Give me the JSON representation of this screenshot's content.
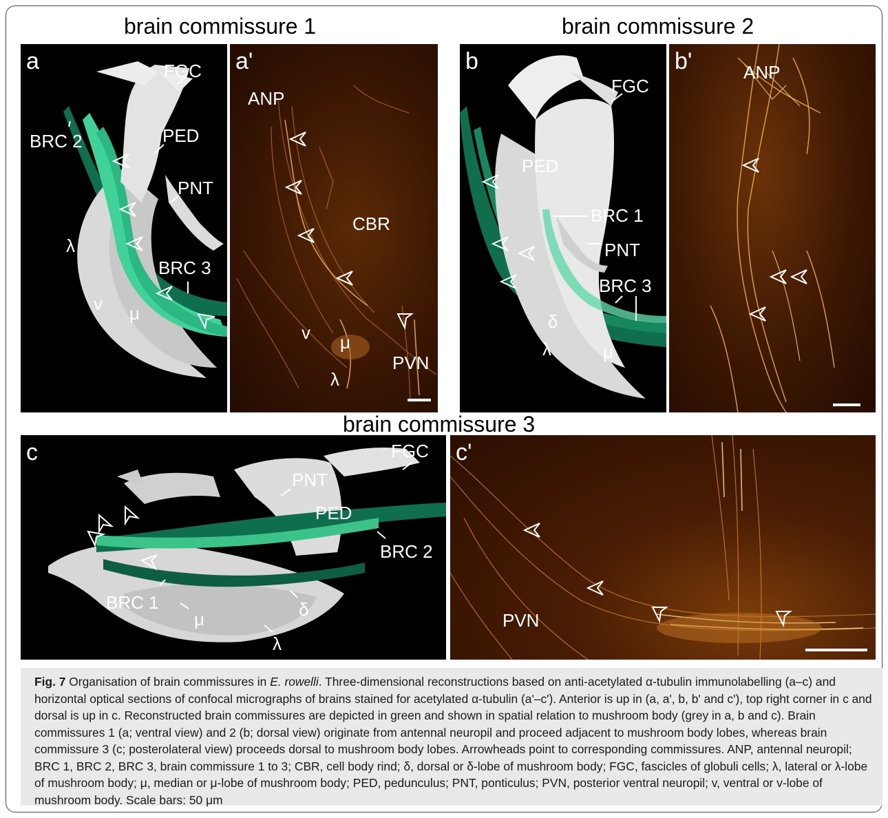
{
  "titles": {
    "bc1": "brain commissure 1",
    "bc2": "brain commissure 2",
    "bc3": "brain commissure 3"
  },
  "panels": {
    "a": {
      "letter": "a",
      "labels": {
        "fgc": "FGC",
        "brc2": "BRC 2",
        "ped": "PED",
        "pnt": "PNT",
        "lambda": "λ",
        "brc3": "BRC 3",
        "v": "v",
        "mu": "μ"
      }
    },
    "a2": {
      "letter": "a'",
      "labels": {
        "anp": "ANP",
        "cbr": "CBR",
        "v": "v",
        "mu": "μ",
        "pvn": "PVN",
        "lambda": "λ"
      }
    },
    "b": {
      "letter": "b",
      "labels": {
        "fgc": "FGC",
        "ped": "PED",
        "brc1": "BRC 1",
        "pnt": "PNT",
        "brc3": "BRC 3",
        "delta": "δ",
        "lambda": "λ",
        "mu": "μ"
      }
    },
    "b2": {
      "letter": "b'",
      "labels": {
        "anp": "ANP"
      }
    },
    "c": {
      "letter": "c",
      "labels": {
        "fgc": "FGC",
        "pnt": "PNT",
        "ped": "PED",
        "brc2": "BRC 2",
        "brc1": "BRC 1",
        "mu": "μ",
        "delta": "δ",
        "lambda": "λ"
      }
    },
    "c2": {
      "letter": "c'",
      "labels": {
        "pvn": "PVN"
      }
    }
  },
  "caption": {
    "fig": "Fig. 7",
    "title": "Organisation of brain commissures in",
    "species": "E. rowelli",
    "text": "Three-dimensional reconstructions based on anti-acetylated α-tubulin immunolabelling (a–c) and horizontal optical sections of confocal micrographs of brains stained for acetylated α-tubulin (a'–c'). Anterior is up in (a, a', b, b' and c'), top right corner in c and dorsal is up in c. Reconstructed brain commissures are depicted in green and shown in spatial relation to mushroom body (grey in a, b and c). Brain commissures 1 (a; ventral view) and 2 (b; dorsal view) originate from antennal neuropil and proceed adjacent to mushroom body lobes, whereas brain commissure 3 (c; posterolateral view) proceeds dorsal to mushroom body lobes. Arrowheads point to corresponding commissures. ANP, antennal neuropil; BRC 1, BRC 2, BRC 3, brain commissure 1 to 3; CBR, cell body rind; δ, dorsal or δ-lobe of mushroom body; FGC, fascicles of globuli cells; λ, lateral or λ-lobe of mushroom body; μ, median or μ-lobe of mushroom body; PED, pedunculus; PNT, ponticulus; PVN, posterior ventral neuropil; v, ventral or v-lobe of mushroom body. Scale bars: 50 μm"
  },
  "colors": {
    "green_dark": "#0f6e4e",
    "green_light": "#3fd39a",
    "grey_mb": "#d9d9d9",
    "confocal_bg": "#3a1603"
  }
}
